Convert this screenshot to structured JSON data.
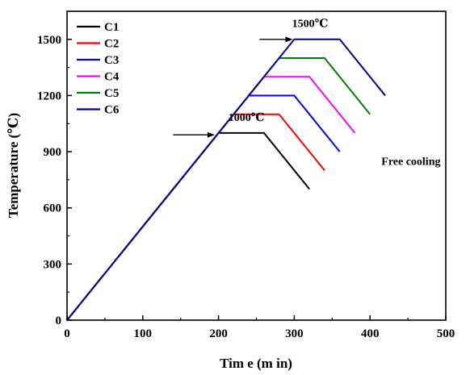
{
  "chart_data": {
    "type": "line",
    "xlabel": "Tim e (m in)",
    "ylabel": "Temperature (℃)",
    "xlim": [
      0,
      500
    ],
    "ylim": [
      0,
      1650
    ],
    "x_ticks": [
      0,
      100,
      200,
      300,
      400,
      500
    ],
    "y_ticks": [
      0,
      300,
      600,
      900,
      1200,
      1500
    ],
    "grid": false,
    "legend_position": "top-left",
    "series": [
      {
        "name": "C1",
        "color": "#000000",
        "x": [
          0,
          200,
          260,
          320
        ],
        "y": [
          0,
          1000,
          1000,
          700
        ]
      },
      {
        "name": "C2",
        "color": "#ff0000",
        "x": [
          0,
          220,
          280,
          340
        ],
        "y": [
          0,
          1100,
          1100,
          800
        ]
      },
      {
        "name": "C3",
        "color": "#0000ff",
        "x": [
          0,
          240,
          300,
          360
        ],
        "y": [
          0,
          1200,
          1200,
          900
        ]
      },
      {
        "name": "C4",
        "color": "#ff00ff",
        "x": [
          0,
          260,
          320,
          380
        ],
        "y": [
          0,
          1300,
          1300,
          1000
        ]
      },
      {
        "name": "C5",
        "color": "#008000",
        "x": [
          0,
          280,
          340,
          400
        ],
        "y": [
          0,
          1400,
          1400,
          1100
        ]
      },
      {
        "name": "C6",
        "color": "#00008b",
        "x": [
          0,
          300,
          360,
          420
        ],
        "y": [
          0,
          1500,
          1500,
          1200
        ]
      }
    ],
    "annotations": [
      {
        "text": "1000℃",
        "arrow_from": [
          140,
          990
        ],
        "arrow_to": [
          195,
          990
        ],
        "text_at": [
          213,
          1065
        ]
      },
      {
        "text": "1500℃",
        "arrow_from": [
          254,
          1500
        ],
        "arrow_to": [
          298,
          1500
        ],
        "text_at": [
          297,
          1567
        ]
      },
      {
        "text": "Free cooling",
        "text_at": [
          415,
          830
        ]
      }
    ]
  }
}
